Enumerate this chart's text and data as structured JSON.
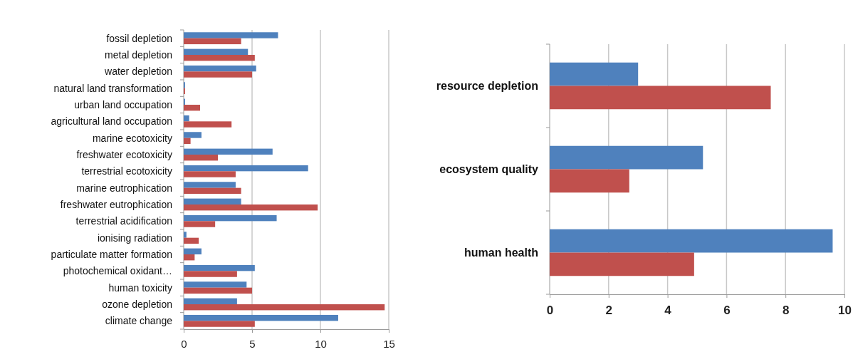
{
  "chart_data": [
    {
      "type": "bar",
      "orientation": "horizontal",
      "categories": [
        "fossil depletion",
        "metal depletion",
        "water depletion",
        "natural land transformation",
        "urban land occupation",
        "agricultural land occupation",
        "marine ecotoxicity",
        "freshwater ecotoxicity",
        "terrestrial ecotoxicity",
        "marine eutrophication",
        "freshwater eutrophication",
        "terrestrial acidification",
        "ionising radiation",
        "particulate matter formation",
        "photochemical oxidant…",
        "human toxicity",
        "ozone depletion",
        "climate change"
      ],
      "series": [
        {
          "color": "#4f81bd",
          "values": [
            6.9,
            4.7,
            5.3,
            0.1,
            0.1,
            0.4,
            1.3,
            6.5,
            9.1,
            3.8,
            4.2,
            6.8,
            0.2,
            1.3,
            5.2,
            4.6,
            3.9,
            11.3
          ]
        },
        {
          "color": "#c0504d",
          "values": [
            4.2,
            5.2,
            5.0,
            0.1,
            1.2,
            3.5,
            0.5,
            2.5,
            3.8,
            4.2,
            9.8,
            2.3,
            1.1,
            0.8,
            3.9,
            5.0,
            14.7,
            5.2
          ]
        }
      ],
      "xlim": [
        0,
        15
      ],
      "xticks": [
        0,
        5,
        10,
        15
      ],
      "grid": "x"
    },
    {
      "type": "bar",
      "orientation": "horizontal",
      "categories": [
        "resource depletion",
        "ecosystem quality",
        "human health"
      ],
      "series": [
        {
          "color": "#4f81bd",
          "values": [
            3.0,
            5.2,
            9.6
          ]
        },
        {
          "color": "#c0504d",
          "values": [
            7.5,
            2.7,
            4.9
          ]
        }
      ],
      "xlim": [
        0,
        10
      ],
      "xticks": [
        0,
        2,
        4,
        6,
        8,
        10
      ],
      "grid": "x"
    }
  ]
}
